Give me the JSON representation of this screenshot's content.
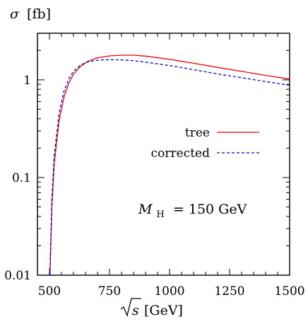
{
  "chart_data": {
    "type": "line",
    "ylabel_symbol": "σ",
    "ylabel_unit": "[fb]",
    "xlabel_symbol": "s",
    "xlabel_unit": "[GeV]",
    "xlim": [
      450,
      1500
    ],
    "ylim": [
      0.01,
      3
    ],
    "yscale": "log",
    "xticks": [
      500,
      750,
      1000,
      1250,
      1500
    ],
    "yticks": [
      0.01,
      0.1,
      1
    ],
    "ytick_labels": [
      "0.01",
      "0.1",
      "1"
    ],
    "xtick_labels": [
      "500",
      "750",
      "1000",
      "1250",
      "1500"
    ],
    "annotation": {
      "symbol": "M",
      "subscript": "H",
      "rest": "= 150 GeV"
    },
    "legend_position": "center-right",
    "series": [
      {
        "name": "tree",
        "color": "#e8000b",
        "dash": "solid",
        "x": [
          502,
          510,
          520,
          540,
          560,
          580,
          600,
          630,
          660,
          700,
          750,
          800,
          850,
          900,
          1000,
          1100,
          1200,
          1300,
          1400,
          1500
        ],
        "y": [
          0.01,
          0.05,
          0.14,
          0.38,
          0.66,
          0.92,
          1.14,
          1.38,
          1.55,
          1.68,
          1.76,
          1.79,
          1.79,
          1.75,
          1.62,
          1.48,
          1.34,
          1.22,
          1.11,
          1.02
        ]
      },
      {
        "name": "corrected",
        "color": "#0000dd",
        "dash": "dashed",
        "x": [
          502,
          510,
          520,
          540,
          560,
          580,
          600,
          630,
          660,
          700,
          750,
          800,
          850,
          900,
          1000,
          1100,
          1200,
          1300,
          1400,
          1500
        ],
        "y": [
          0.01,
          0.06,
          0.17,
          0.45,
          0.76,
          1.02,
          1.22,
          1.42,
          1.53,
          1.59,
          1.61,
          1.6,
          1.57,
          1.52,
          1.4,
          1.27,
          1.15,
          1.05,
          0.96,
          0.88
        ]
      }
    ]
  }
}
